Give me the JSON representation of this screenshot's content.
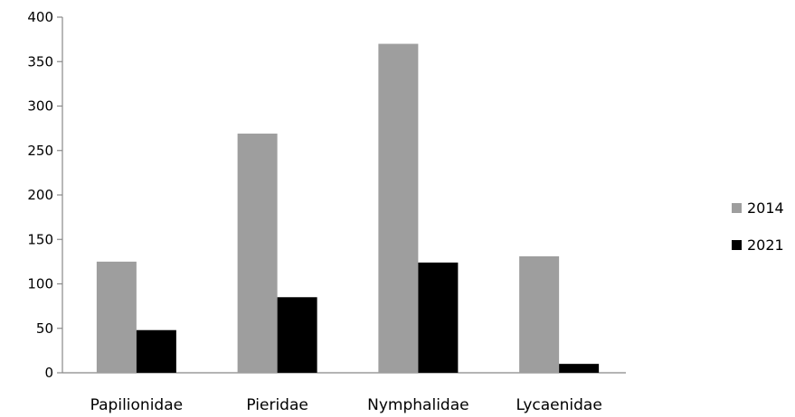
{
  "chart_data": {
    "type": "bar",
    "title": "",
    "xlabel": "",
    "ylabel": "",
    "categories": [
      "Papilionidae",
      "Pieridae",
      "Nymphalidae",
      "Lycaenidae"
    ],
    "series": [
      {
        "name": "2014",
        "values": [
          125,
          269,
          370,
          131
        ],
        "color": "#9e9e9e"
      },
      {
        "name": "2021",
        "values": [
          48,
          85,
          124,
          10
        ],
        "color": "#000000"
      }
    ],
    "ylim": [
      0,
      400
    ],
    "yticks": [
      0,
      50,
      100,
      150,
      200,
      250,
      300,
      350,
      400
    ],
    "grid": false,
    "legend_position": "right"
  }
}
